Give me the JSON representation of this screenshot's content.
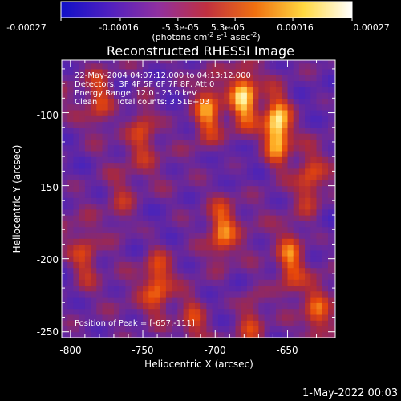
{
  "colorbar": {
    "ticks": [
      "-0.00027",
      "-0.00016",
      "-5.3e-05",
      "5.3e-05",
      "0.00016",
      "0.00027"
    ],
    "tick_values": [
      -0.00027,
      -0.00016,
      -5.3e-05,
      5.3e-05,
      0.00016,
      0.00027
    ],
    "range": [
      -0.00027,
      0.00027
    ],
    "units_prefix": "(photons cm",
    "units_exp1": "-2",
    "units_mid1": " s",
    "units_exp2": "-1",
    "units_mid2": " asec",
    "units_exp3": "-2",
    "units_suffix": ")",
    "colors": [
      "#1010c8",
      "#5020c0",
      "#9030a0",
      "#c03040",
      "#f07010",
      "#ffd840",
      "#ffffff"
    ]
  },
  "chart_data": {
    "type": "heatmap",
    "title": "Reconstructed RHESSI Image",
    "xlabel": "Heliocentric X (arcsec)",
    "ylabel": "Heliocentric Y (arcsec)",
    "xlim": [
      -806,
      -617
    ],
    "ylim": [
      -254,
      -64
    ],
    "xticks": [
      -800,
      -750,
      -700,
      -650
    ],
    "yticks": [
      -100,
      -150,
      -200,
      -250
    ],
    "grid": false,
    "colormap": "blue-purple-red-orange-yellow-white",
    "peak_position": [
      -657,
      -111
    ],
    "hot_spots": [
      {
        "x": -657,
        "y": -111,
        "intensity": 1.0
      },
      {
        "x": -680,
        "y": -90,
        "intensity": 0.75
      },
      {
        "x": -705,
        "y": -100,
        "intensity": 0.6
      },
      {
        "x": -750,
        "y": -110,
        "intensity": 0.45
      },
      {
        "x": -780,
        "y": -90,
        "intensity": 0.45
      },
      {
        "x": -695,
        "y": -180,
        "intensity": 0.55
      },
      {
        "x": -648,
        "y": -200,
        "intensity": 0.6
      },
      {
        "x": -635,
        "y": -150,
        "intensity": 0.45
      },
      {
        "x": -740,
        "y": -215,
        "intensity": 0.55
      },
      {
        "x": -790,
        "y": -200,
        "intensity": 0.4
      },
      {
        "x": -715,
        "y": -245,
        "intensity": 0.4
      },
      {
        "x": -675,
        "y": -240,
        "intensity": 0.4
      },
      {
        "x": -630,
        "y": -240,
        "intensity": 0.45
      },
      {
        "x": -765,
        "y": -165,
        "intensity": 0.3
      }
    ],
    "annotations": [
      "22-May-2004 04:07:12.000 to 04:13:12.000",
      "Detectors: 3F 4F 5F 6F 7F 8F, Att 0",
      "Energy Range: 12.0 - 25.0 keV",
      "Clean",
      "Total counts: 3.51E+03",
      "Position of Peak = [-657,-111]"
    ]
  },
  "footer": {
    "timestamp": "1-May-2022 00:03"
  }
}
